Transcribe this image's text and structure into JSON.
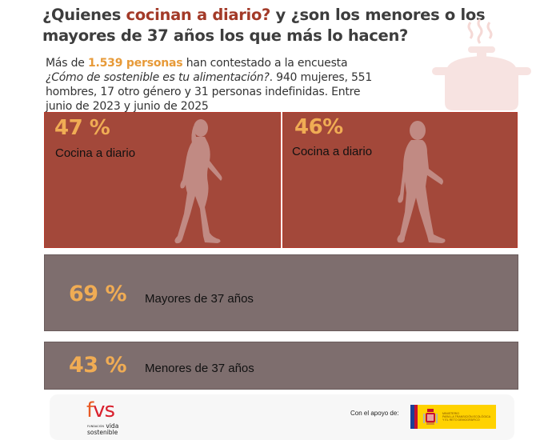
{
  "header": {
    "title_part1": "¿Quienes ",
    "title_highlight": "cocinan a diario?",
    "title_part2": " y ¿son los menores o los mayores de 37 años los que más lo hacen?"
  },
  "intro": {
    "prefix": "Más de ",
    "highlight": "1.539 personas",
    "middle": " han contestado a la encuesta ",
    "survey_name": "¿Cómo de sostenible es tu alimentación?",
    "suffix": ". 940 mujeres, 551 hombres, 17 otro género y 31 personas indefinidas. Entre junio de 2023 y junio de 2025"
  },
  "gender_stats": [
    {
      "percent": "47 %",
      "label": "Cocina a diario",
      "figure": "woman-walking-icon"
    },
    {
      "percent": "46%",
      "label": "Cocina a diario",
      "figure": "man-walking-icon"
    }
  ],
  "age_stats": [
    {
      "percent": "69 %",
      "label": "Mayores de 37 años"
    },
    {
      "percent": "43 %",
      "label": "Menores de 37 años"
    }
  ],
  "footer": {
    "logo_fvs_f": "f",
    "logo_fvs_vs": "vs",
    "logo_small": "FUNDACIÓN",
    "logo_line1": "vida",
    "logo_line2": "sostenible",
    "support_label": "Con el apoyo de:",
    "ministry_line1": "MINISTERIO",
    "ministry_line2": "PARA LA TRANSICIÓN ECOLÓGICA",
    "ministry_line3": "Y EL RETO DEMOGRÁFICO"
  },
  "colors": {
    "accent_red": "#a33a28",
    "box_red": "#a3483a",
    "box_grey": "#7e6e6e",
    "percent_orange": "#f0ac54",
    "pot_pink": "#f7e3e1"
  }
}
